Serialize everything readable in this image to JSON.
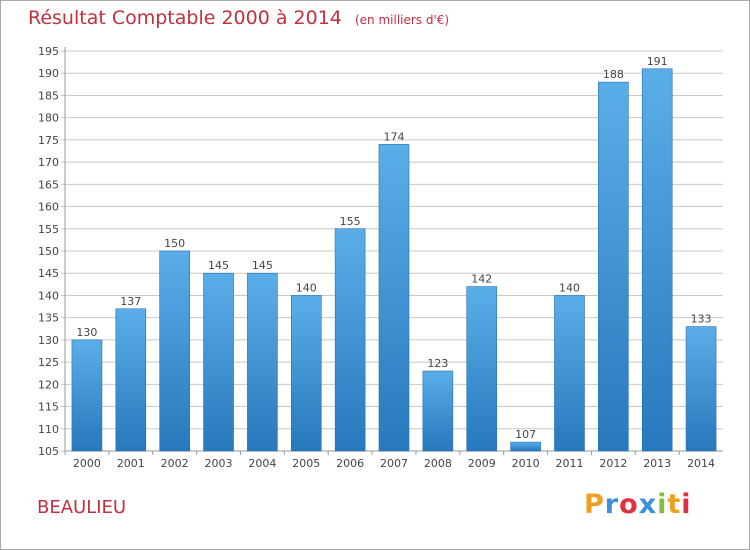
{
  "chart_data": {
    "type": "bar",
    "title": "Résultat Comptable 2000 à 2014",
    "subtitle": "(en milliers d'€)",
    "categories": [
      "2000",
      "2001",
      "2002",
      "2003",
      "2004",
      "2005",
      "2006",
      "2007",
      "2008",
      "2009",
      "2010",
      "2011",
      "2012",
      "2013",
      "2014"
    ],
    "values": [
      130,
      137,
      150,
      145,
      145,
      140,
      155,
      174,
      123,
      142,
      107,
      140,
      188,
      191,
      133
    ],
    "ylim": [
      105,
      195
    ],
    "yticks": [
      105,
      110,
      115,
      120,
      125,
      130,
      135,
      140,
      145,
      150,
      155,
      160,
      165,
      170,
      175,
      180,
      185,
      190,
      195
    ],
    "grid": true,
    "bar_color": "#3d95d8",
    "bar_color_light": "#5aaee8",
    "bar_color_dark": "#2878bd",
    "grid_color": "#c8c8c8"
  },
  "footer": {
    "commune": "BEAULIEU",
    "brand": "Proxiti",
    "brand_colors": [
      "#f0a020",
      "#3d8fd8",
      "#e03040",
      "#3d8fd8",
      "#80c040",
      "#f0a020",
      "#e03040"
    ]
  },
  "colors": {
    "title": "#c03040",
    "axis_text": "#444444"
  }
}
